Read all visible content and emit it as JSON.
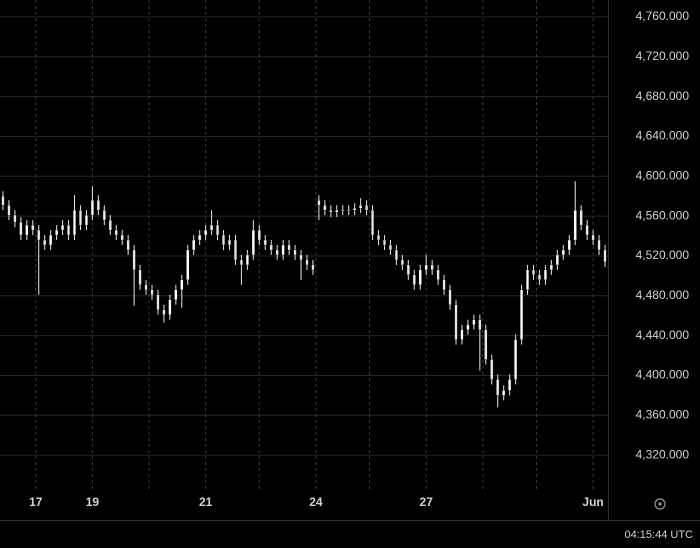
{
  "chart_data": {
    "type": "candlestick",
    "status_time": "04:15:44 UTC",
    "xlim": [
      -0.5,
      101.5
    ],
    "xticks": [
      {
        "value": 5.5,
        "label": "17"
      },
      {
        "value": 15,
        "label": "19"
      },
      {
        "value": 34,
        "label": "21"
      },
      {
        "value": 52.5,
        "label": "24"
      },
      {
        "value": 71,
        "label": "27"
      },
      {
        "value": 99,
        "label": "Jun"
      }
    ],
    "xgrid": [
      5.5,
      15,
      24.5,
      34,
      43,
      52.5,
      61.5,
      71,
      80.5,
      89.5,
      99
    ],
    "ylim": [
      4285,
      4777
    ],
    "yticks": [
      {
        "value": 4320,
        "label": "4,320.000"
      },
      {
        "value": 4360,
        "label": "4,360.000"
      },
      {
        "value": 4400,
        "label": "4,400.000"
      },
      {
        "value": 4440,
        "label": "4,440.000"
      },
      {
        "value": 4480,
        "label": "4,480.000"
      },
      {
        "value": 4520,
        "label": "4,520.000"
      },
      {
        "value": 4560,
        "label": "4,560.000"
      },
      {
        "value": 4600,
        "label": "4,600.000"
      },
      {
        "value": 4640,
        "label": "4,640.000"
      },
      {
        "value": 4680,
        "label": "4,680.000"
      },
      {
        "value": 4720,
        "label": "4,720.000"
      },
      {
        "value": 4760,
        "label": "4,760.000"
      }
    ],
    "grid": true,
    "color": "#e8e8e8",
    "open": [
      4580,
      4571,
      4561,
      4554,
      4541,
      4551,
      4546,
      4536,
      4531,
      4541,
      4546,
      4551,
      4541,
      4566,
      4551,
      4561,
      4576,
      4566,
      4556,
      4546,
      4541,
      4536,
      4526,
      4506,
      4491,
      4486,
      4481,
      4466,
      4461,
      4476,
      4486,
      4496,
      4526,
      4536,
      4541,
      4546,
      4551,
      4541,
      4531,
      4536,
      4516,
      4511,
      4521,
      4546,
      4536,
      4531,
      4526,
      4521,
      4531,
      4526,
      4521,
      4516,
      4511,
      4576,
      4571,
      4566,
      4564,
      4566,
      4566,
      4566,
      4568,
      4571,
      4566,
      4541,
      4536,
      4531,
      4526,
      4516,
      4511,
      4501,
      4491,
      4506,
      4511,
      4506,
      4496,
      4486,
      4471,
      4436,
      4446,
      4451,
      4456,
      4446,
      4416,
      4396,
      4380,
      4385,
      4396,
      4436,
      4486,
      4506,
      4501,
      4496,
      4506,
      4511,
      4521,
      4526,
      4536,
      4566,
      4551,
      4541,
      4536,
      4526
    ],
    "high": [
      4585,
      4576,
      4566,
      4559,
      4556,
      4556,
      4551,
      4541,
      4546,
      4551,
      4556,
      4556,
      4581,
      4571,
      4566,
      4590,
      4581,
      4571,
      4561,
      4551,
      4546,
      4541,
      4531,
      4511,
      4496,
      4491,
      4486,
      4471,
      4481,
      4491,
      4501,
      4531,
      4541,
      4546,
      4551,
      4566,
      4556,
      4546,
      4541,
      4541,
      4521,
      4526,
      4556,
      4551,
      4541,
      4536,
      4531,
      4536,
      4536,
      4531,
      4526,
      4521,
      4516,
      4581,
      4576,
      4571,
      4571,
      4571,
      4571,
      4573,
      4578,
      4576,
      4571,
      4546,
      4541,
      4536,
      4531,
      4521,
      4516,
      4506,
      4511,
      4521,
      4516,
      4511,
      4501,
      4491,
      4476,
      4451,
      4456,
      4461,
      4461,
      4451,
      4421,
      4401,
      4390,
      4401,
      4441,
      4491,
      4511,
      4511,
      4506,
      4511,
      4516,
      4526,
      4531,
      4541,
      4595,
      4571,
      4556,
      4546,
      4541,
      4531
    ],
    "low": [
      4566,
      4556,
      4549,
      4536,
      4536,
      4541,
      4481,
      4526,
      4526,
      4536,
      4541,
      4536,
      4536,
      4546,
      4546,
      4556,
      4561,
      4551,
      4541,
      4536,
      4531,
      4521,
      4470,
      4486,
      4481,
      4476,
      4461,
      4453,
      4456,
      4471,
      4468,
      4491,
      4521,
      4531,
      4536,
      4541,
      4536,
      4526,
      4526,
      4511,
      4491,
      4506,
      4516,
      4531,
      4526,
      4521,
      4516,
      4516,
      4521,
      4516,
      4496,
      4506,
      4501,
      4556,
      4561,
      4559,
      4559,
      4561,
      4561,
      4561,
      4563,
      4561,
      4536,
      4531,
      4526,
      4521,
      4511,
      4506,
      4496,
      4486,
      4486,
      4501,
      4501,
      4491,
      4481,
      4466,
      4431,
      4431,
      4441,
      4446,
      4405,
      4411,
      4391,
      4368,
      4375,
      4380,
      4391,
      4431,
      4481,
      4496,
      4491,
      4491,
      4501,
      4506,
      4516,
      4521,
      4531,
      4546,
      4536,
      4531,
      4521,
      4509
    ],
    "close": [
      4571,
      4561,
      4554,
      4541,
      4551,
      4546,
      4536,
      4531,
      4541,
      4546,
      4551,
      4541,
      4566,
      4551,
      4561,
      4576,
      4566,
      4556,
      4546,
      4541,
      4536,
      4526,
      4506,
      4491,
      4486,
      4481,
      4466,
      4461,
      4476,
      4486,
      4496,
      4526,
      4536,
      4541,
      4546,
      4551,
      4541,
      4531,
      4536,
      4516,
      4511,
      4521,
      4546,
      4536,
      4531,
      4526,
      4521,
      4531,
      4526,
      4521,
      4516,
      4511,
      4506,
      4571,
      4566,
      4564,
      4566,
      4566,
      4566,
      4568,
      4571,
      4566,
      4541,
      4536,
      4531,
      4526,
      4516,
      4511,
      4501,
      4491,
      4506,
      4511,
      4506,
      4496,
      4486,
      4471,
      4436,
      4446,
      4451,
      4456,
      4446,
      4416,
      4396,
      4380,
      4385,
      4396,
      4436,
      4486,
      4506,
      4501,
      4496,
      4506,
      4511,
      4521,
      4526,
      4536,
      4566,
      4551,
      4541,
      4536,
      4526,
      4514
    ]
  }
}
